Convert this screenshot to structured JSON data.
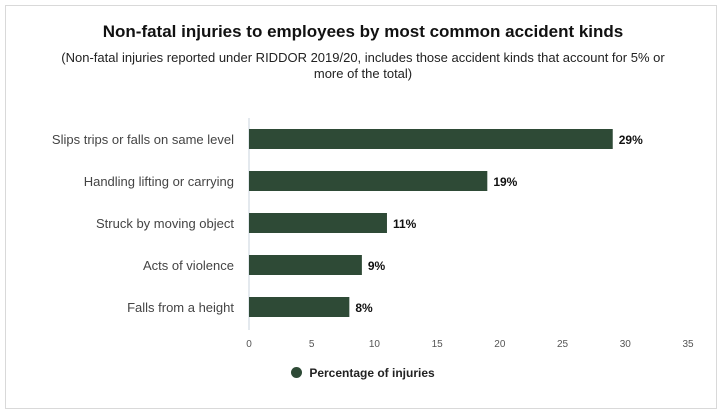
{
  "chart_data": {
    "type": "bar",
    "orientation": "horizontal",
    "title": "Non-fatal injuries to employees by most common accident kinds",
    "subtitle": "(Non-fatal injuries reported under RIDDOR 2019/20, includes those accident kinds that account for 5% or more of the total)",
    "categories": [
      "Slips trips or falls on same level",
      "Handling lifting or carrying",
      "Struck by moving object",
      "Acts of violence",
      "Falls from a height"
    ],
    "series": [
      {
        "name": "Percentage of injuries",
        "values": [
          29,
          19,
          11,
          9,
          8
        ],
        "color": "#2e4a36"
      }
    ],
    "data_labels": [
      "29%",
      "19%",
      "11%",
      "9%",
      "8%"
    ],
    "xlim": [
      0,
      35
    ],
    "xticks": [
      "0",
      "5",
      "10",
      "15",
      "20",
      "25",
      "30",
      "35"
    ],
    "xlabel": "",
    "ylabel": "",
    "grid": false,
    "legend_position": "bottom"
  }
}
